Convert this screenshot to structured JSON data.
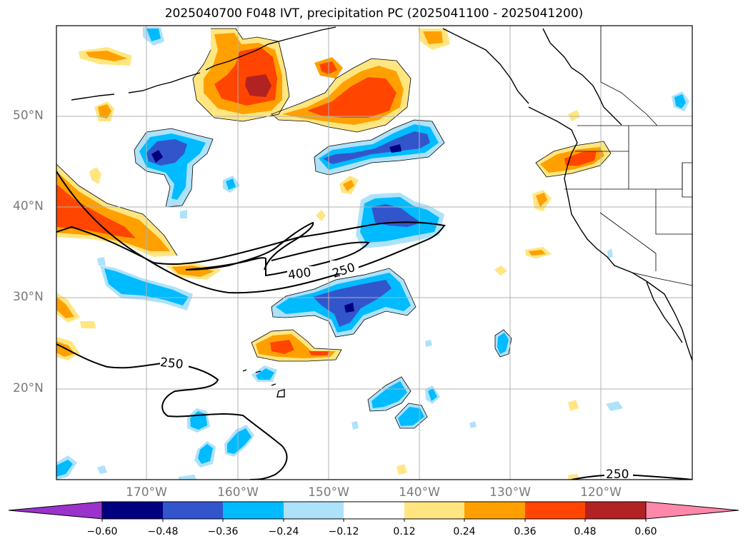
{
  "title": "2025040700 F048 IVT, precipitation PC (2025041100 - 2025041200)",
  "lat_labels": [
    "50°N",
    "40°N",
    "30°N",
    "20°N"
  ],
  "lon_labels": [
    "170°W",
    "160°W",
    "150°W",
    "140°W",
    "130°W",
    "120°W"
  ],
  "contour_labels": [
    "400",
    "250",
    "250",
    "250"
  ],
  "colorbar": {
    "tick_labels": [
      "−0.60",
      "−0.48",
      "−0.36",
      "−0.24",
      "−0.12",
      "0.12",
      "0.24",
      "0.36",
      "0.48",
      "0.60"
    ],
    "colors": [
      "#9933cc",
      "#000080",
      "#3355cc",
      "#00bbff",
      "#aee2fa",
      "#ffffff",
      "#ffe680",
      "#ffa000",
      "#ff4500",
      "#b22222",
      "#ff88aa"
    ]
  },
  "colors": {
    "contour": "#000000",
    "gridline": "#b0b0b0",
    "label_grey": "#7a7a7a"
  }
}
